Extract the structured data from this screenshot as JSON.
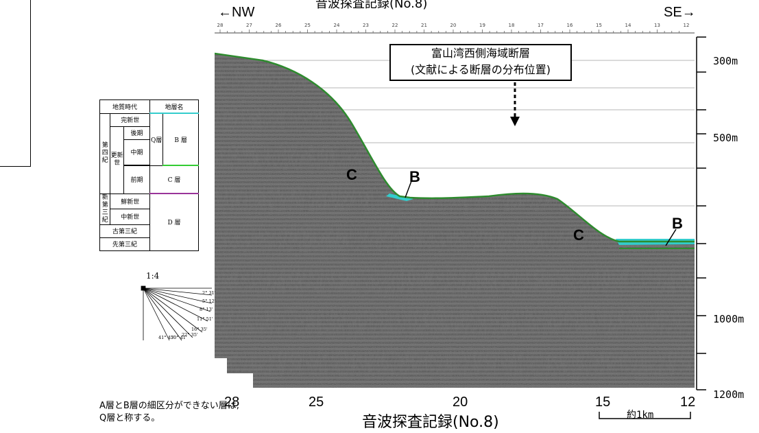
{
  "header": {
    "title": "音波探査記録(No.8)",
    "left_direction": "←NW",
    "right_direction": "SE→",
    "shot_numbers": [
      "28",
      "27",
      "26",
      "25",
      "24",
      "23",
      "22",
      "21",
      "20",
      "19",
      "18",
      "17",
      "16",
      "15",
      "14",
      "13",
      "12"
    ]
  },
  "section": {
    "fault_label_line1": "富山湾西側海域断層",
    "fault_label_line2": "(文献による断層の分布位置)",
    "markers": [
      "C",
      "B",
      "C",
      "B"
    ],
    "bottom_axis": [
      "28",
      "25",
      "20",
      "15",
      "12"
    ],
    "scale_bar_label": "約1km",
    "title": "音波探査記録(No.8)"
  },
  "depth_axis": {
    "labels": [
      "300m",
      "500m",
      "1000m",
      "1200m"
    ]
  },
  "legend": {
    "header_age": "地質時代",
    "header_unit": "地層名",
    "holocene": "完新世",
    "quaternary": "第四紀",
    "pleistocene": "更新世",
    "late": "後期",
    "middle": "中期",
    "early": "前期",
    "q_layer": "Q層",
    "b_layer": "B 層",
    "c_layer": "C 層",
    "neogene": "新第三紀",
    "pliocene": "鮮新世",
    "miocene": "中新世",
    "d_layer": "D 層",
    "paleogene": "古第三紀",
    "pre_tertiary": "先第三紀",
    "boundary_colors": {
      "holocene": "#33cccc",
      "quaternary_early": "#33cc33",
      "neogene": "#993399"
    }
  },
  "dip_scale": {
    "ratio": "1:4",
    "angles": [
      "2° 31'",
      "5° 12'",
      "8° 13'",
      "11° 51'",
      "16° 35'",
      "22° 35'",
      "30° 41'",
      "41° 45'"
    ]
  },
  "note": {
    "line1": "A層とB層の細区分ができない層は,",
    "line2": "Q層と称する。"
  },
  "colors": {
    "seafloor_line": "#2e8b2e",
    "b_layer_fill": "#33cccc",
    "seismic_base": "#6f6f6f"
  }
}
